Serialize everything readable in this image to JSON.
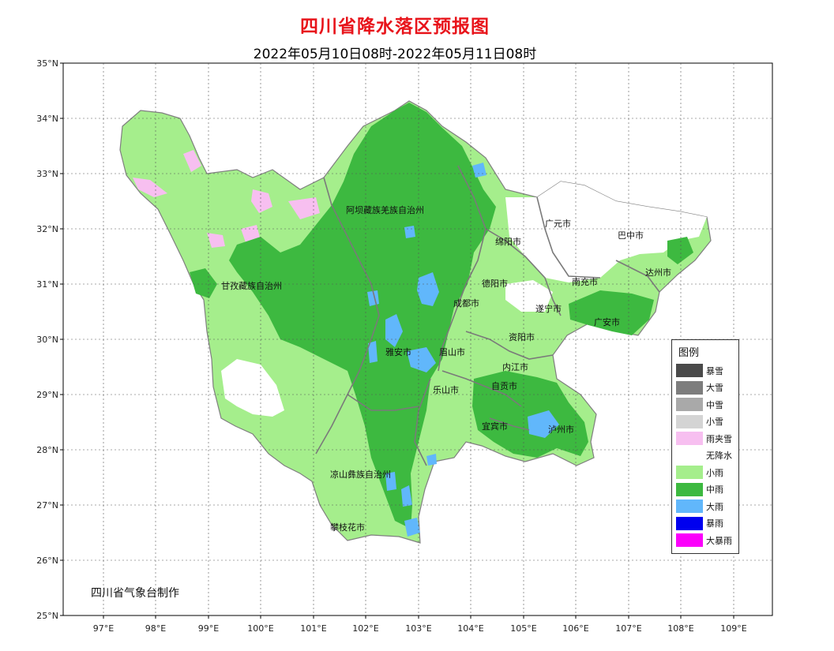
{
  "header": {
    "title": "四川省降水落区预报图",
    "subtitle": "2022年05月10日08时-2022年05月11日08时"
  },
  "axes": {
    "lat_labels": [
      "35°N",
      "34°N",
      "33°N",
      "32°N",
      "31°N",
      "30°N",
      "29°N",
      "28°N",
      "27°N",
      "26°N",
      "25°N"
    ],
    "lon_labels": [
      "97°E",
      "98°E",
      "99°E",
      "100°E",
      "101°E",
      "102°E",
      "103°E",
      "104°E",
      "105°E",
      "106°E",
      "107°E",
      "108°E",
      "109°E"
    ]
  },
  "cities": [
    {
      "name": "阿坝藏族羌族自治州"
    },
    {
      "name": "甘孜藏族自治州"
    },
    {
      "name": "绵阳市"
    },
    {
      "name": "广元市"
    },
    {
      "name": "巴中市"
    },
    {
      "name": "达州市"
    },
    {
      "name": "南充市"
    },
    {
      "name": "德阳市"
    },
    {
      "name": "成都市"
    },
    {
      "name": "遂宁市"
    },
    {
      "name": "广安市"
    },
    {
      "name": "资阳市"
    },
    {
      "name": "雅安市"
    },
    {
      "name": "眉山市"
    },
    {
      "name": "内江市"
    },
    {
      "name": "乐山市"
    },
    {
      "name": "自贡市"
    },
    {
      "name": "宜宾市"
    },
    {
      "name": "泸州市"
    },
    {
      "name": "凉山彝族自治州"
    },
    {
      "name": "攀枝花市"
    }
  ],
  "legend": {
    "title": "图例",
    "items": [
      {
        "label": "暴雪",
        "color": "#4a4a4a"
      },
      {
        "label": "大雪",
        "color": "#7d7d7d"
      },
      {
        "label": "中雪",
        "color": "#a9a9a9"
      },
      {
        "label": "小雪",
        "color": "#d4d4d4"
      },
      {
        "label": "雨夹雪",
        "color": "#f7bff0"
      },
      {
        "label": "无降水",
        "color": "#ffffff"
      },
      {
        "label": "小雨",
        "color": "#a5ee8c"
      },
      {
        "label": "中雨",
        "color": "#3db940"
      },
      {
        "label": "大雨",
        "color": "#61b7fb"
      },
      {
        "label": "暴雨",
        "color": "#0000ef"
      },
      {
        "label": "大暴雨",
        "color": "#fb00fb"
      }
    ]
  },
  "footer": {
    "credit": "四川省气象台制作"
  }
}
